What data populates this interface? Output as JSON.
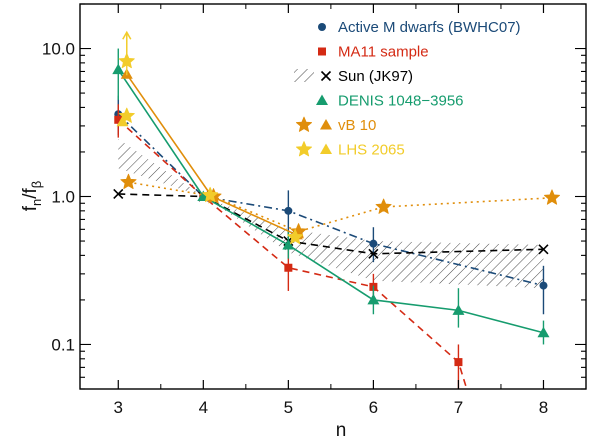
{
  "chart_data": {
    "type": "scatter",
    "title": "",
    "xlabel": "n",
    "ylabel": "f_n/f_β",
    "ylabel_main": "f",
    "ylabel_sub": "n",
    "ylabel_slash": "/f",
    "ylabel_sub2": "β",
    "xlim": [
      2.55,
      8.5
    ],
    "ylim": [
      0.05,
      20
    ],
    "yscale": "log",
    "xticks": [
      3,
      4,
      5,
      6,
      7,
      8
    ],
    "xtick_labels": [
      "3",
      "4",
      "5",
      "6",
      "7",
      "8"
    ],
    "yticks": [
      0.1,
      1.0,
      10.0
    ],
    "ytick_labels": [
      "0.1",
      "1.0",
      "10.0"
    ],
    "shaded_band": {
      "name": "Sun (JK97)",
      "x": [
        3,
        4,
        5,
        6,
        8
      ],
      "lower": [
        1.55,
        1.0,
        0.42,
        0.27,
        0.24
      ],
      "upper": [
        2.45,
        1.0,
        0.6,
        0.5,
        0.47
      ]
    },
    "series": [
      {
        "name": "Active M dwarfs (BWHC07)",
        "color": "#1b4a78",
        "marker": "circle",
        "line": "dashdot",
        "points": [
          {
            "x": 3,
            "y": 3.6,
            "lo": 2.6,
            "hi": 4.8
          },
          {
            "x": 4,
            "y": 1.0
          },
          {
            "x": 5,
            "y": 0.8,
            "lo": 0.55,
            "hi": 1.1
          },
          {
            "x": 6,
            "y": 0.48,
            "lo": 0.36,
            "hi": 0.62
          },
          {
            "x": 8,
            "y": 0.25,
            "lo": 0.16,
            "hi": 0.34
          }
        ]
      },
      {
        "name": "MA11 sample",
        "color": "#d42a14",
        "marker": "square",
        "line": "dashed",
        "points": [
          {
            "x": 3,
            "y": 3.3,
            "lo": 2.5,
            "hi": 4.2
          },
          {
            "x": 4,
            "y": 1.0
          },
          {
            "x": 5,
            "y": 0.33,
            "lo": 0.23,
            "hi": 0.45
          },
          {
            "x": 6,
            "y": 0.245,
            "lo": 0.19,
            "hi": 0.3
          },
          {
            "x": 7,
            "y": 0.076,
            "lo": 0.05,
            "hi": 0.1
          }
        ],
        "tail": {
          "x": 7.15,
          "y": 0.04
        }
      },
      {
        "name": "Sun (JK97)",
        "color": "#000000",
        "marker": "x",
        "line": "dashed",
        "points": [
          {
            "x": 3,
            "y": 1.04
          },
          {
            "x": 4,
            "y": 1.0
          },
          {
            "x": 5,
            "y": 0.5
          },
          {
            "x": 6,
            "y": 0.41
          },
          {
            "x": 8,
            "y": 0.44
          }
        ]
      },
      {
        "name": "DENIS 1048−3956",
        "color": "#169c6e",
        "marker": "triangle",
        "line": "solid",
        "points": [
          {
            "x": 3,
            "y": 7.2,
            "lo": 4.5,
            "hi": 10.0
          },
          {
            "x": 4,
            "y": 1.0
          },
          {
            "x": 5,
            "y": 0.47,
            "lo": 0.38,
            "hi": 0.58
          },
          {
            "x": 6,
            "y": 0.2,
            "lo": 0.16,
            "hi": 0.25
          },
          {
            "x": 7,
            "y": 0.17,
            "lo": 0.13,
            "hi": 0.24
          },
          {
            "x": 8,
            "y": 0.12,
            "lo": 0.1,
            "hi": 0.145
          }
        ]
      },
      {
        "name": "vB 10",
        "color": "#e08e0b",
        "star_points": [
          {
            "x": 3.12,
            "y": 1.25
          },
          {
            "x": 4.12,
            "y": 1.0
          },
          {
            "x": 5.12,
            "y": 0.58
          },
          {
            "x": 6.12,
            "y": 0.85
          },
          {
            "x": 8.1,
            "y": 0.98
          }
        ],
        "star_line": "dotted",
        "tri_points": [
          {
            "x": 3.1,
            "y": 6.7
          },
          {
            "x": 4.1,
            "y": 1.0
          },
          {
            "x": 5.1,
            "y": 0.55
          }
        ],
        "tri_line": "solid"
      },
      {
        "name": "LHS 2065",
        "color": "#f2cc2a",
        "star_points": [
          {
            "x": 3.1,
            "y": 8.2,
            "lo": 6.6
          },
          {
            "x": 3.1,
            "y": 3.5
          },
          {
            "x": 4.08,
            "y": 1.02
          },
          {
            "x": 5.08,
            "y": 0.53
          }
        ],
        "tri_points": [
          {
            "x": 3.05,
            "y": 3.2
          }
        ],
        "arrow": {
          "x": 3.1,
          "y": 8.2
        }
      }
    ],
    "legend": {
      "placement": "top-right",
      "entries": [
        {
          "label": "Active M dwarfs (BWHC07)",
          "color": "#1b4a78",
          "symbols": [
            "circle"
          ]
        },
        {
          "label": "MA11 sample",
          "color": "#d42a14",
          "symbols": [
            "square"
          ]
        },
        {
          "label": "Sun (JK97)",
          "color": "#000000",
          "symbols": [
            "hatch",
            "x"
          ]
        },
        {
          "label": "DENIS 1048−3956",
          "color": "#169c6e",
          "symbols": [
            "triangle"
          ]
        },
        {
          "label": "vB 10",
          "color": "#e08e0b",
          "symbols": [
            "star",
            "triangle"
          ]
        },
        {
          "label": "LHS 2065",
          "color": "#f2cc2a",
          "symbols": [
            "star",
            "triangle"
          ]
        }
      ]
    }
  }
}
